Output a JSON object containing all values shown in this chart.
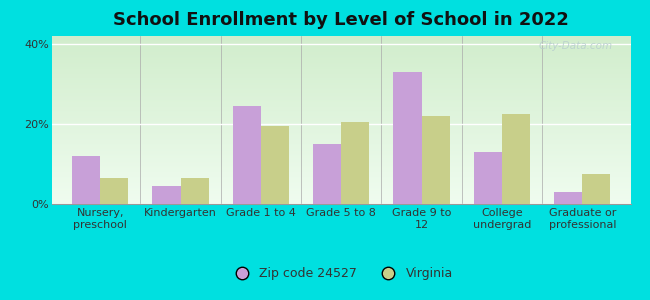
{
  "title": "School Enrollment by Level of School in 2022",
  "categories": [
    "Nursery,\npreschool",
    "Kindergarten",
    "Grade 1 to 4",
    "Grade 5 to 8",
    "Grade 9 to\n12",
    "College\nundergrad",
    "Graduate or\nprofessional"
  ],
  "zip_values": [
    12.0,
    4.5,
    24.5,
    15.0,
    33.0,
    13.0,
    3.0
  ],
  "va_values": [
    6.5,
    6.5,
    19.5,
    20.5,
    22.0,
    22.5,
    7.5
  ],
  "zip_color": "#c8a0d8",
  "va_color": "#c8cf8a",
  "background_outer": "#00e0e0",
  "ylim": [
    0,
    42
  ],
  "yticks": [
    0,
    20,
    40
  ],
  "ytick_labels": [
    "0%",
    "20%",
    "40%"
  ],
  "legend_zip_label": "Zip code 24527",
  "legend_va_label": "Virginia",
  "title_fontsize": 13,
  "tick_fontsize": 8,
  "legend_fontsize": 9,
  "bar_width": 0.35,
  "watermark": "City-Data.com"
}
